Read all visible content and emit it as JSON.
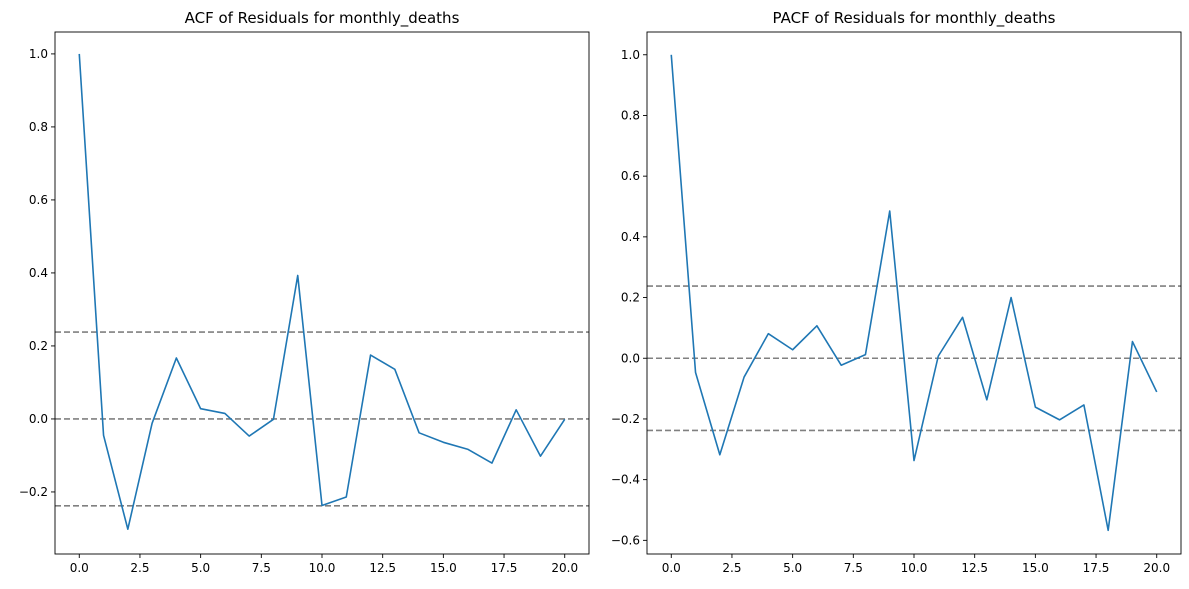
{
  "chart_data": [
    {
      "type": "line",
      "title": "ACF of Residuals for monthly_deaths",
      "xlabel": "",
      "ylabel": "",
      "xlim": [
        -1,
        21
      ],
      "ylim": [
        -0.37,
        1.06
      ],
      "x_ticks": [
        0,
        2.5,
        5,
        7.5,
        10,
        12.5,
        15,
        17.5,
        20
      ],
      "x_tick_labels": [
        "0.0",
        "2.5",
        "5.0",
        "7.5",
        "10.0",
        "12.5",
        "15.0",
        "17.5",
        "20.0"
      ],
      "y_ticks": [
        -0.2,
        0,
        0.2,
        0.4,
        0.6,
        0.8,
        1.0
      ],
      "y_tick_labels": [
        "−0.2",
        "0.0",
        "0.2",
        "0.4",
        "0.6",
        "0.8",
        "1.0"
      ],
      "x": [
        0,
        1,
        2,
        3,
        4,
        5,
        6,
        7,
        8,
        9,
        10,
        11,
        12,
        13,
        14,
        15,
        16,
        17,
        18,
        19,
        20
      ],
      "series": [
        {
          "color": "#1f77b4",
          "values": [
            1.0,
            -0.045,
            -0.302,
            -0.012,
            0.167,
            0.028,
            0.015,
            -0.047,
            -0.001,
            0.393,
            -0.237,
            -0.214,
            0.175,
            0.136,
            -0.038,
            -0.064,
            -0.083,
            -0.121,
            0.025,
            -0.102,
            -0.001
          ]
        }
      ],
      "reference_lines": [
        {
          "y": 0.238,
          "color": "#808080",
          "style": "dashed"
        },
        {
          "y": 0.0,
          "color": "#808080",
          "style": "dashed"
        },
        {
          "y": -0.238,
          "color": "#808080",
          "style": "dashed"
        }
      ],
      "grid": false,
      "legend": "none"
    },
    {
      "type": "line",
      "title": "PACF of Residuals for monthly_deaths",
      "xlabel": "",
      "ylabel": "",
      "xlim": [
        -1,
        21
      ],
      "ylim": [
        -0.645,
        1.075
      ],
      "x_ticks": [
        0,
        2.5,
        5,
        7.5,
        10,
        12.5,
        15,
        17.5,
        20
      ],
      "x_tick_labels": [
        "0.0",
        "2.5",
        "5.0",
        "7.5",
        "10.0",
        "12.5",
        "15.0",
        "17.5",
        "20.0"
      ],
      "y_ticks": [
        -0.6,
        -0.4,
        -0.2,
        0,
        0.2,
        0.4,
        0.6,
        0.8,
        1.0
      ],
      "y_tick_labels": [
        "−0.6",
        "−0.4",
        "−0.2",
        "0.0",
        "0.2",
        "0.4",
        "0.6",
        "0.8",
        "1.0"
      ],
      "x": [
        0,
        1,
        2,
        3,
        4,
        5,
        6,
        7,
        8,
        9,
        10,
        11,
        12,
        13,
        14,
        15,
        16,
        17,
        18,
        19,
        20
      ],
      "series": [
        {
          "color": "#1f77b4",
          "values": [
            1.0,
            -0.047,
            -0.318,
            -0.062,
            0.081,
            0.028,
            0.107,
            -0.023,
            0.012,
            0.485,
            -0.337,
            0.007,
            0.135,
            -0.137,
            0.2,
            -0.161,
            -0.203,
            -0.154,
            -0.567,
            0.055,
            -0.111
          ]
        }
      ],
      "reference_lines": [
        {
          "y": 0.238,
          "color": "#808080",
          "style": "dashed"
        },
        {
          "y": 0.0,
          "color": "#808080",
          "style": "dashed"
        },
        {
          "y": -0.238,
          "color": "#808080",
          "style": "dashed"
        }
      ],
      "grid": false,
      "legend": "none"
    }
  ]
}
